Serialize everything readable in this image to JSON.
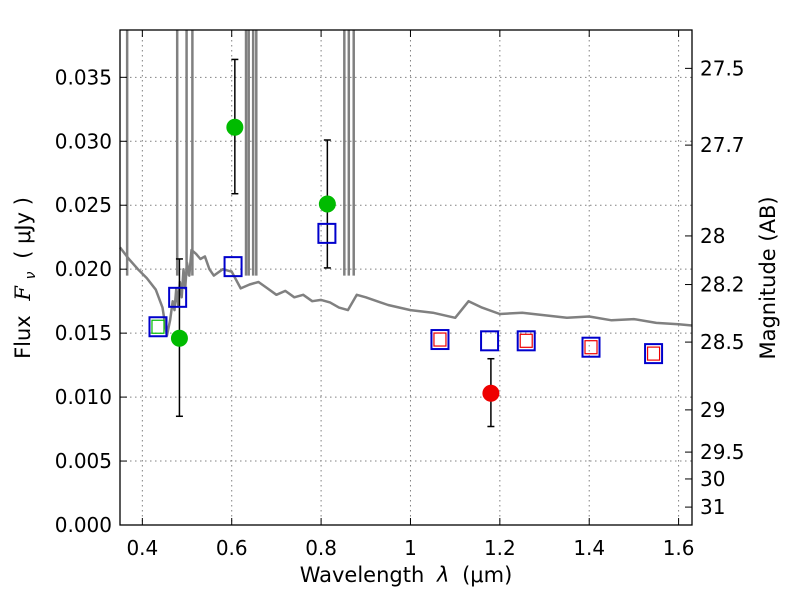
{
  "chart_data": {
    "type": "scatter",
    "title": "",
    "xlabel_prefix": "Wavelength",
    "xlabel_sym": "λ",
    "xlabel_unit": "(μm)",
    "ylabel_prefix": "Flux",
    "ylabel_sym": "F",
    "ylabel_sub": "ν",
    "ylabel_unit": "( μJy )",
    "y2label": "Magnitude (AB)",
    "xlim": [
      0.35,
      1.63
    ],
    "ylim": [
      0.0,
      0.0387
    ],
    "x_ticks": [
      0.4,
      0.6,
      0.8,
      1.0,
      1.2,
      1.4,
      1.6
    ],
    "x_tick_labels": [
      "0.4",
      "0.6",
      "0.8",
      "1",
      "1.2",
      "1.4",
      "1.6"
    ],
    "y_ticks": [
      0.0,
      0.005,
      0.01,
      0.015,
      0.02,
      0.025,
      0.03,
      0.035
    ],
    "y_tick_labels": [
      "0.000",
      "0.005",
      "0.010",
      "0.015",
      "0.020",
      "0.025",
      "0.030",
      "0.035"
    ],
    "y2_ticks": [
      {
        "label": "27.5",
        "flux": 0.0357
      },
      {
        "label": "27.7",
        "flux": 0.0297
      },
      {
        "label": "28",
        "flux": 0.0226
      },
      {
        "label": "28.2",
        "flux": 0.0188
      },
      {
        "label": "28.5",
        "flux": 0.0143
      },
      {
        "label": "29",
        "flux": 0.009
      },
      {
        "label": "29.5",
        "flux": 0.0057
      },
      {
        "label": "30",
        "flux": 0.0036
      },
      {
        "label": "31",
        "flux": 0.0014
      }
    ],
    "grid": true,
    "series": [
      {
        "name": "model spectrum",
        "kind": "line",
        "color": "#808080",
        "x": [
          0.35,
          0.37,
          0.39,
          0.41,
          0.43,
          0.445,
          0.455,
          0.462,
          0.468,
          0.472,
          0.476,
          0.48,
          0.484,
          0.488,
          0.492,
          0.496,
          0.5,
          0.505,
          0.51,
          0.52,
          0.53,
          0.54,
          0.55,
          0.56,
          0.58,
          0.6,
          0.62,
          0.64,
          0.66,
          0.68,
          0.7,
          0.72,
          0.74,
          0.76,
          0.78,
          0.8,
          0.82,
          0.84,
          0.86,
          0.88,
          0.9,
          0.95,
          1.0,
          1.05,
          1.1,
          1.13,
          1.16,
          1.2,
          1.25,
          1.3,
          1.35,
          1.4,
          1.45,
          1.5,
          1.55,
          1.6,
          1.63
        ],
        "y": [
          0.0217,
          0.0208,
          0.02,
          0.0193,
          0.0184,
          0.017,
          0.0148,
          0.016,
          0.0175,
          0.0168,
          0.0185,
          0.0172,
          0.019,
          0.0178,
          0.02,
          0.0185,
          0.0205,
          0.0195,
          0.0215,
          0.0212,
          0.0208,
          0.021,
          0.02,
          0.0195,
          0.02,
          0.0198,
          0.0185,
          0.0188,
          0.019,
          0.0185,
          0.018,
          0.0183,
          0.0178,
          0.018,
          0.0175,
          0.0176,
          0.0174,
          0.017,
          0.0168,
          0.018,
          0.0178,
          0.0172,
          0.0168,
          0.0166,
          0.0162,
          0.0175,
          0.017,
          0.0165,
          0.0166,
          0.0164,
          0.0162,
          0.0163,
          0.016,
          0.0161,
          0.0158,
          0.0157,
          0.0156
        ]
      },
      {
        "name": "emission spikes",
        "kind": "spikes",
        "color": "#808080",
        "x": [
          0.366,
          0.478,
          0.499,
          0.512,
          0.632,
          0.638,
          0.648,
          0.655,
          0.852,
          0.862,
          0.873
        ]
      },
      {
        "name": "observed flux (detections)",
        "kind": "points",
        "color": "#00bb00",
        "x": [
          0.483,
          0.607,
          0.814
        ],
        "y": [
          0.0146,
          0.0311,
          0.0251
        ],
        "err_low": [
          0.0061,
          0.0052,
          0.005
        ],
        "err_high": [
          0.0062,
          0.0053,
          0.005
        ]
      },
      {
        "name": "observed flux (red)",
        "kind": "points",
        "color": "#ee0000",
        "x": [
          1.18
        ],
        "y": [
          0.0103
        ],
        "err_low": [
          0.0026
        ],
        "err_high": [
          0.0027
        ]
      },
      {
        "name": "model photometry (large)",
        "kind": "open-squares",
        "color": "#0000cc",
        "x": [
          0.435,
          0.479,
          0.603,
          0.813,
          1.066,
          1.177,
          1.259,
          1.404,
          1.544
        ],
        "y": [
          0.0155,
          0.0178,
          0.0202,
          0.0228,
          0.0145,
          0.0144,
          0.0144,
          0.0139,
          0.0134
        ]
      },
      {
        "name": "model photometry (inner)",
        "kind": "small-squares",
        "x": [
          0.435,
          1.066,
          1.259,
          1.404,
          1.544
        ],
        "y": [
          0.0155,
          0.0145,
          0.0144,
          0.0139,
          0.0134
        ],
        "colors": [
          "#00bb00",
          "#ee0000",
          "#ee0000",
          "#ee0000",
          "#ee0000"
        ]
      }
    ]
  }
}
